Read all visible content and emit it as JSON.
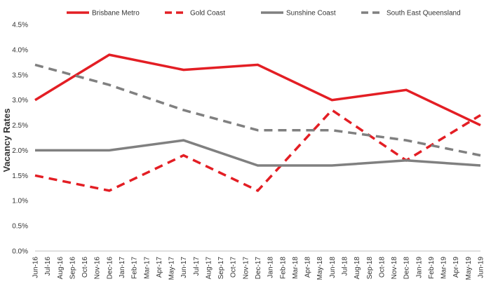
{
  "chart_data": {
    "type": "line",
    "ylabel": "Vacancy Rates",
    "xlabel": "",
    "title": "",
    "ylim": [
      0,
      4.5
    ],
    "yticks": [
      "0.0%",
      "0.5%",
      "1.0%",
      "1.5%",
      "2.0%",
      "2.5%",
      "3.0%",
      "3.5%",
      "4.0%",
      "4.5%"
    ],
    "categories": [
      "Jun-16",
      "Jul-16",
      "Aug-16",
      "Sep-16",
      "Oct-16",
      "Nov-16",
      "Dec-16",
      "Jan-17",
      "Feb-17",
      "Mar-17",
      "Apr-17",
      "May-17",
      "Jun-17",
      "Jul-17",
      "Aug-17",
      "Sep-17",
      "Oct-17",
      "Nov-17",
      "Dec-17",
      "Jan-18",
      "Feb-18",
      "Mar-18",
      "Apr-18",
      "May-18",
      "Jun-18",
      "Jul-18",
      "Aug-18",
      "Sep-18",
      "Oct-18",
      "Nov-18",
      "Dec-18",
      "Jan-19",
      "Feb-19",
      "Mar-19",
      "Apr-19",
      "May-19",
      "Jun-19"
    ],
    "grid": false,
    "legend_position": "top",
    "series": [
      {
        "name": "Brisbane Metro",
        "color": "#e31e24",
        "style": "solid",
        "points": [
          {
            "x": "Jun-16",
            "y": 3.0
          },
          {
            "x": "Dec-16",
            "y": 3.9
          },
          {
            "x": "Jun-17",
            "y": 3.6
          },
          {
            "x": "Dec-17",
            "y": 3.7
          },
          {
            "x": "Jun-18",
            "y": 3.0
          },
          {
            "x": "Dec-18",
            "y": 3.2
          },
          {
            "x": "Jun-19",
            "y": 2.5
          }
        ]
      },
      {
        "name": "Gold Coast",
        "color": "#e31e24",
        "style": "dashed",
        "points": [
          {
            "x": "Jun-16",
            "y": 1.5
          },
          {
            "x": "Dec-16",
            "y": 1.2
          },
          {
            "x": "Jun-17",
            "y": 1.9
          },
          {
            "x": "Dec-17",
            "y": 1.2
          },
          {
            "x": "Jun-18",
            "y": 2.8
          },
          {
            "x": "Dec-18",
            "y": 1.8
          },
          {
            "x": "Jun-19",
            "y": 2.7
          }
        ]
      },
      {
        "name": "Sunshine Coast",
        "color": "#808080",
        "style": "solid",
        "points": [
          {
            "x": "Jun-16",
            "y": 2.0
          },
          {
            "x": "Dec-16",
            "y": 2.0
          },
          {
            "x": "Jun-17",
            "y": 2.2
          },
          {
            "x": "Dec-17",
            "y": 1.7
          },
          {
            "x": "Jun-18",
            "y": 1.7
          },
          {
            "x": "Dec-18",
            "y": 1.8
          },
          {
            "x": "Jun-19",
            "y": 1.7
          }
        ]
      },
      {
        "name": "South East Queensland",
        "color": "#808080",
        "style": "dashed",
        "points": [
          {
            "x": "Jun-16",
            "y": 3.7
          },
          {
            "x": "Dec-16",
            "y": 3.3
          },
          {
            "x": "Jun-17",
            "y": 2.8
          },
          {
            "x": "Dec-17",
            "y": 2.4
          },
          {
            "x": "Jun-18",
            "y": 2.4
          },
          {
            "x": "Dec-18",
            "y": 2.2
          },
          {
            "x": "Jun-19",
            "y": 1.9
          }
        ]
      }
    ]
  }
}
